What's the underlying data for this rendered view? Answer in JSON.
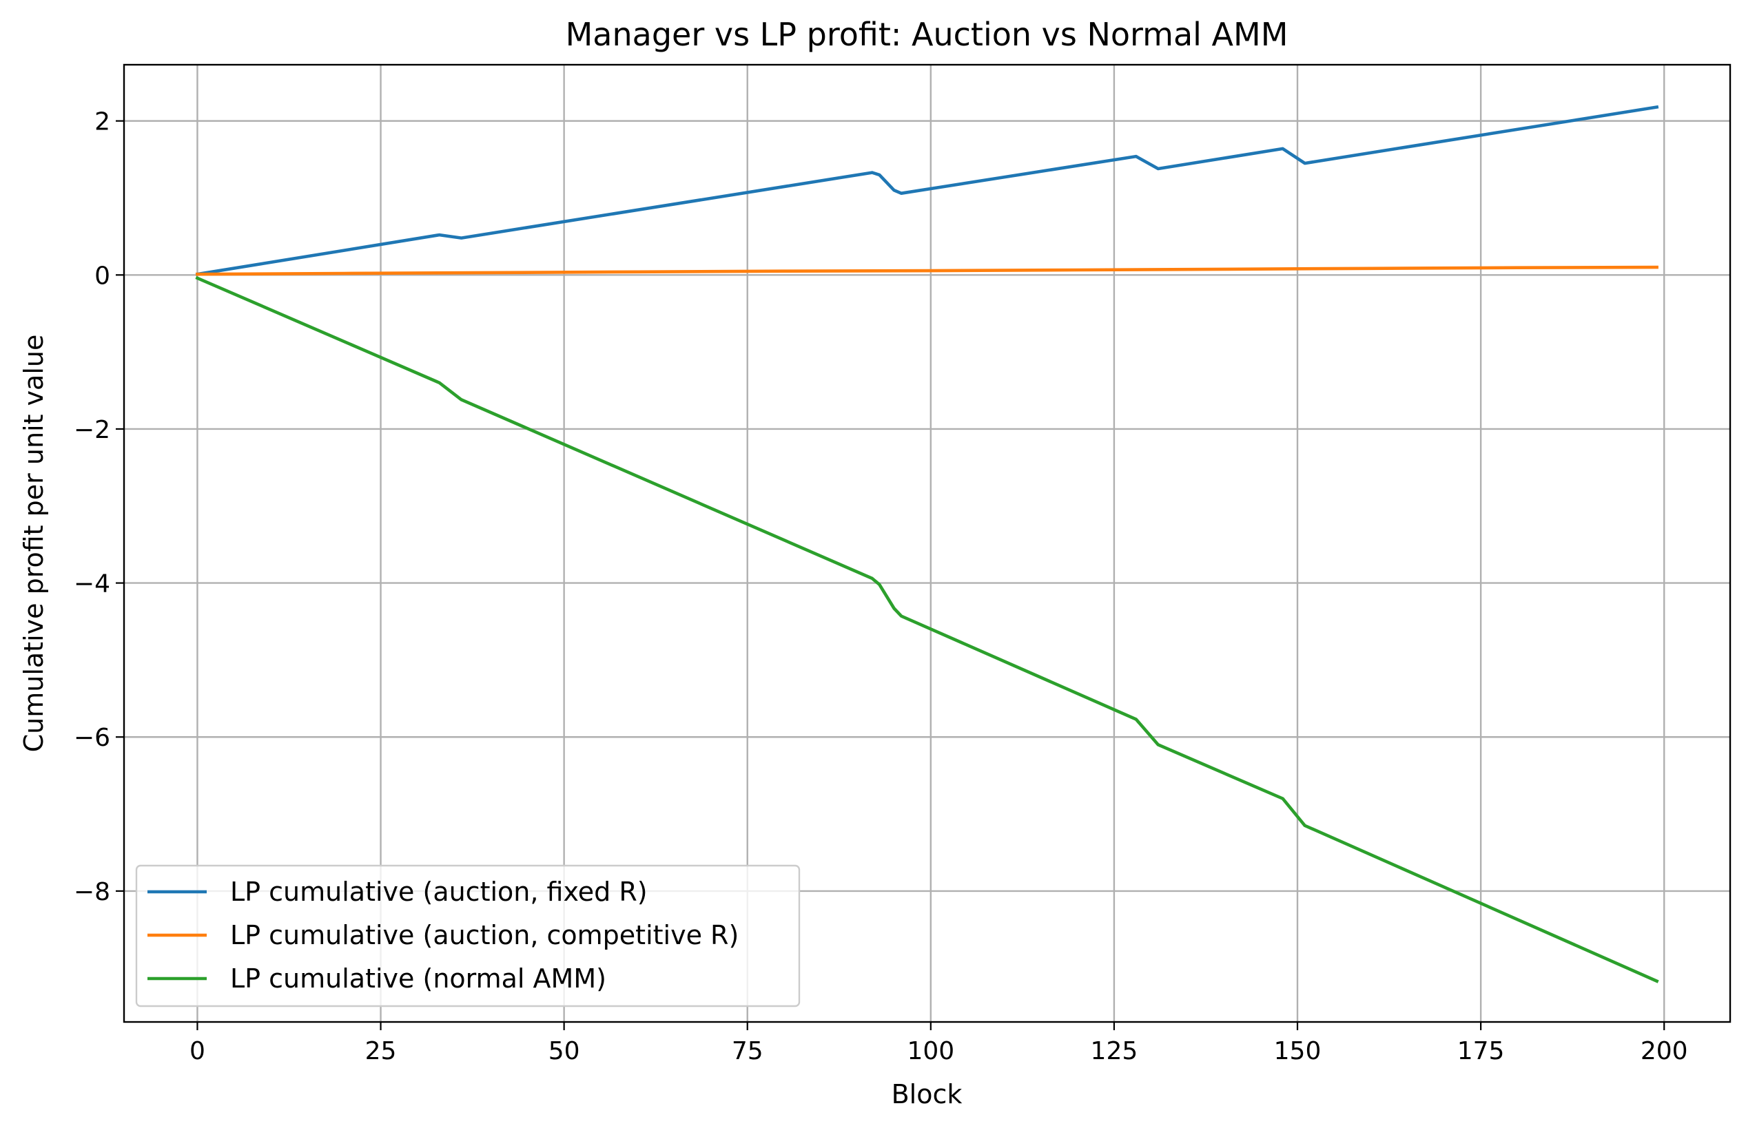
{
  "chart_data": {
    "type": "line",
    "title": "Manager vs LP profit: Auction vs Normal AMM",
    "xlabel": "Block",
    "ylabel": "Cumulative profit per unit value",
    "xlim": [
      -10,
      209
    ],
    "ylim": [
      -9.7,
      2.73
    ],
    "xticks": [
      0,
      25,
      50,
      75,
      100,
      125,
      150,
      175,
      200
    ],
    "yticks": [
      2,
      0,
      -2,
      -4,
      -6,
      -8
    ],
    "xtick_labels": [
      "0",
      "25",
      "50",
      "75",
      "100",
      "125",
      "150",
      "175",
      "200"
    ],
    "ytick_labels": [
      "2",
      "0",
      "−2",
      "−4",
      "−6",
      "−8"
    ],
    "grid": true,
    "legend_position": "lower-left",
    "series": [
      {
        "name": "LP cumulative (auction, fixed R)",
        "color": "#1f77b4",
        "x": [
          0,
          33,
          36,
          92,
          93,
          95,
          96,
          128,
          131,
          148,
          151,
          199
        ],
        "y": [
          0.01,
          0.52,
          0.48,
          1.33,
          1.3,
          1.1,
          1.06,
          1.54,
          1.38,
          1.64,
          1.45,
          2.18
        ]
      },
      {
        "name": "LP cumulative (auction, competitive R)",
        "color": "#ff7f0e",
        "x": [
          0,
          20,
          40,
          60,
          80,
          100,
          120,
          140,
          160,
          180,
          199
        ],
        "y": [
          0.01,
          0.02,
          0.03,
          0.04,
          0.05,
          0.055,
          0.065,
          0.075,
          0.085,
          0.095,
          0.1
        ]
      },
      {
        "name": "LP cumulative (normal AMM)",
        "color": "#2ca02c",
        "x": [
          0,
          33,
          36,
          92,
          93,
          95,
          96,
          128,
          131,
          148,
          151,
          199
        ],
        "y": [
          -0.04,
          -1.4,
          -1.62,
          -3.94,
          -4.02,
          -4.33,
          -4.43,
          -5.77,
          -6.1,
          -6.8,
          -7.15,
          -9.17
        ]
      }
    ]
  }
}
